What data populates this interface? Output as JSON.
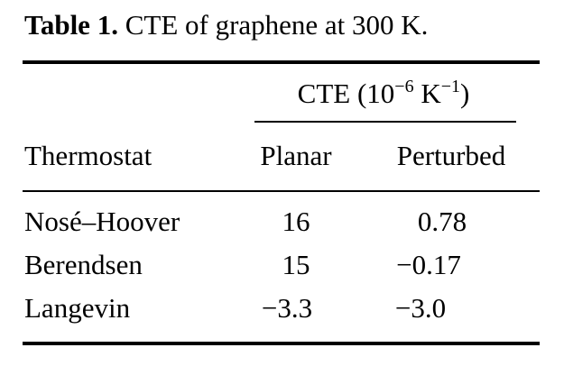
{
  "caption": {
    "label": "Table 1.",
    "text": "CTE of graphene at 300 K."
  },
  "table": {
    "group_header": [
      "CTE (10",
      "−6",
      " K",
      "−1",
      ")"
    ],
    "columns": [
      "Thermostat",
      "Planar",
      "Perturbed"
    ],
    "rows": [
      [
        "Nosé–Hoover",
        "16",
        "0.78"
      ],
      [
        "Berendsen",
        "15",
        "−0.17"
      ],
      [
        "Langevin",
        "−3.3",
        "−3.0"
      ]
    ]
  }
}
